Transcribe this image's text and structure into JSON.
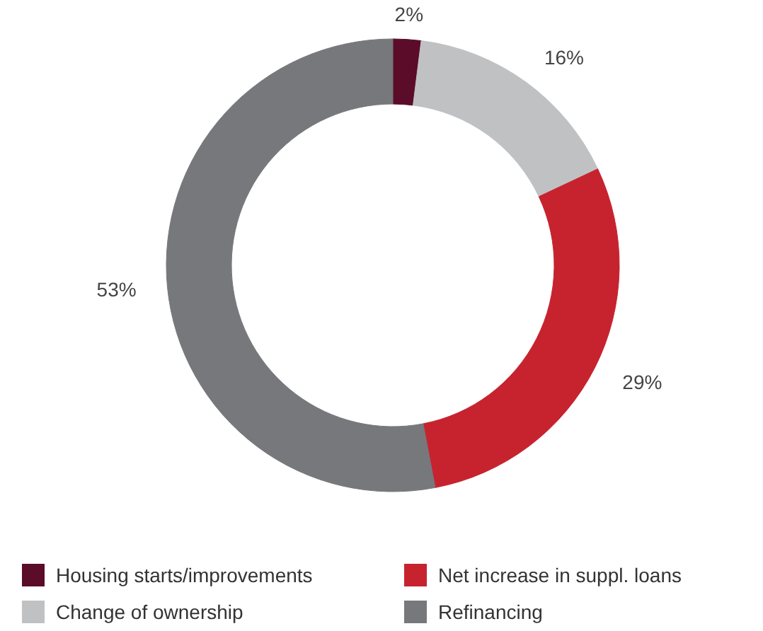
{
  "chart_data": {
    "type": "donut",
    "categories": [
      "Housing starts/improvements",
      "Change of ownership",
      "Net increase in suppl. loans",
      "Refinancing"
    ],
    "values": [
      2,
      16,
      29,
      53
    ],
    "value_labels": [
      "2%",
      "16%",
      "29%",
      "53%"
    ],
    "colors": [
      "#5a0c28",
      "#c0c1c3",
      "#c6232f",
      "#77787b"
    ],
    "legend": "bottom"
  }
}
